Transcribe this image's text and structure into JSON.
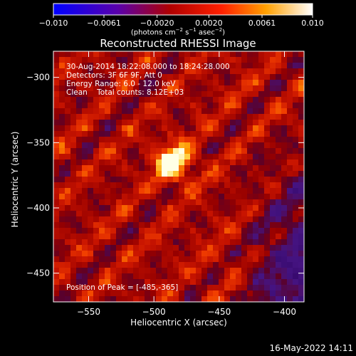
{
  "chart_data": {
    "type": "heatmap",
    "title": "Reconstructed RHESSI Image",
    "xlabel": "Heliocentric X (arcsec)",
    "ylabel": "Heliocentric Y (arcsec)",
    "xlim": [
      -577,
      -385
    ],
    "ylim": [
      -472,
      -280
    ],
    "xticks": [
      -550,
      -500,
      -450,
      -400
    ],
    "xtick_labels": [
      "−550",
      "−500",
      "−450",
      "−400"
    ],
    "yticks": [
      -300,
      -350,
      -400,
      -450
    ],
    "ytick_labels": [
      "−300",
      "−350",
      "−400",
      "−450"
    ],
    "colorbar": {
      "range": [
        -0.01,
        0.01
      ],
      "ticks": [
        -0.01,
        -0.0061,
        -0.002,
        0.002,
        0.0061,
        0.01
      ],
      "tick_labels": [
        "−0.010",
        "−0.0061",
        "−0.0020",
        "0.0020",
        "0.0061",
        "0.010"
      ],
      "units_pre": "(photons cm",
      "units_mid": " s",
      "units_post": " asec",
      "units_end": ")",
      "exp1": "−2",
      "exp2": "−1",
      "exp3": "−2"
    },
    "annotations": [
      "30-Aug-2014 18:22:08.000 to 18:24:28.000",
      "Detectors: 3F 6F 9F, Att 0",
      "Energy Range: 6.0 - 12.0 keV",
      "Clean    Total counts: 8.12E+03"
    ],
    "peak_label": "Position of Peak = [-485,-365]",
    "peak": [
      -485,
      -365
    ],
    "colormap": "rainbow/heat (blue-purple-red-orange-yellow-white)"
  },
  "footer": {
    "timestamp": "16-May-2022 14:11"
  }
}
